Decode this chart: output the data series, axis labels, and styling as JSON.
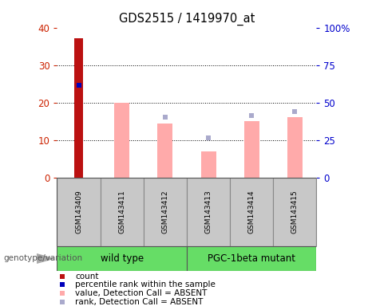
{
  "title": "GDS2515 / 1419970_at",
  "samples": [
    "GSM143409",
    "GSM143411",
    "GSM143412",
    "GSM143413",
    "GSM143414",
    "GSM143415"
  ],
  "bar_values": [
    37.2,
    0,
    0,
    0,
    0,
    0
  ],
  "pink_values": [
    0,
    20,
    14.5,
    7,
    15,
    16
  ],
  "blue_sq_values": [
    0,
    0,
    16,
    10.5,
    16.5,
    17.5
  ],
  "dark_blue_values": [
    24.5,
    0,
    0,
    0,
    0,
    0
  ],
  "left_ylim": [
    0,
    40
  ],
  "right_ylim": [
    0,
    100
  ],
  "left_yticks": [
    0,
    10,
    20,
    30,
    40
  ],
  "right_yticks": [
    0,
    25,
    50,
    75,
    100
  ],
  "right_yticklabels": [
    "0",
    "25",
    "50",
    "75",
    "100%"
  ],
  "left_ytick_color": "#cc2200",
  "right_ytick_color": "#0000cc",
  "wild_type_label": "wild type",
  "mutant_label": "PGC-1beta mutant",
  "green_color": "#66dd66",
  "group_label": "genotype/variation",
  "bg_color": "#ffffff",
  "label_count": "count",
  "label_percentile": "percentile rank within the sample",
  "label_value_absent": "value, Detection Call = ABSENT",
  "label_rank_absent": "rank, Detection Call = ABSENT",
  "red_color": "#bb1111",
  "dark_blue_color": "#0000bb",
  "pink_color": "#ffaaaa",
  "blue_sq_color": "#aaaacc",
  "bar_width": 0.35,
  "cell_bg": "#c8c8c8",
  "grid_dotted_color": "#000000",
  "n_samples": 6
}
